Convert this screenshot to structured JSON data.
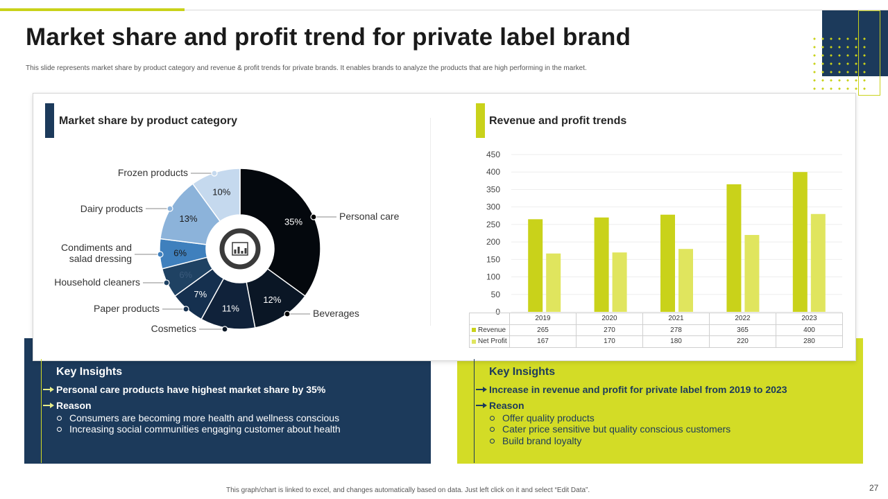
{
  "header": {
    "title": "Market share and profit trend for private label brand",
    "subtitle": "This slide represents market share by product category and revenue & profit trends for private  brands. It enables brands to analyze the products that are high performing in the market."
  },
  "sections": {
    "left_title": "Market share by product category",
    "right_title": "Revenue and profit trends"
  },
  "colors": {
    "navy": "#1c3a5b",
    "lime": "#c9d21a",
    "lime_light": "#e0e55e"
  },
  "chart_data": [
    {
      "type": "pie",
      "variant": "donut",
      "title": "Market share by product category",
      "center_icon": "chart-icon",
      "categories": [
        "Personal care",
        "Beverages",
        "Cosmetics",
        "Paper products",
        "Household cleaners",
        "Condiments and salad dressing",
        "Dairy products",
        "Frozen products"
      ],
      "label_lines": [
        [
          "Personal care"
        ],
        [
          "Beverages"
        ],
        [
          "Cosmetics"
        ],
        [
          "Paper products"
        ],
        [
          "Household cleaners"
        ],
        [
          "Condiments and",
          "salad dressing"
        ],
        [
          "Dairy products"
        ],
        [
          "Frozen products"
        ]
      ],
      "values": [
        35,
        12,
        11,
        7,
        6,
        6,
        13,
        10
      ],
      "value_labels": [
        "35%",
        "12%",
        "11%",
        "7%",
        "6%",
        "6%",
        "13%",
        "10%"
      ],
      "colors": [
        "#04080d",
        "#0a1625",
        "#10223a",
        "#15304f",
        "#1f4263",
        "#3f80bd",
        "#8cb3da",
        "#c5d9ee"
      ]
    },
    {
      "type": "bar",
      "title": "Revenue and profit trends",
      "categories": [
        "2019",
        "2020",
        "2021",
        "2022",
        "2023"
      ],
      "series": [
        {
          "name": "Revenue",
          "values": [
            265,
            270,
            278,
            365,
            400
          ],
          "color": "#c9d21a"
        },
        {
          "name": "Net Profit",
          "values": [
            167,
            170,
            180,
            220,
            280
          ],
          "color": "#e0e55e"
        }
      ],
      "yticks": [
        "0",
        "50",
        "100",
        "150",
        "200",
        "250",
        "300",
        "350",
        "400",
        "450"
      ],
      "ylim": [
        0,
        450
      ],
      "legend": "data-table"
    }
  ],
  "insights_left": {
    "heading": "Key Insights",
    "point": "Personal care products have highest market share by 35%",
    "reason_label": "Reason",
    "bullets": [
      "Consumers are becoming more health and wellness conscious",
      "Increasing social communities engaging customer about health"
    ]
  },
  "insights_right": {
    "heading": "Key Insights",
    "point": "Increase in revenue and profit for private label from 2019 to 2023",
    "reason_label": "Reason",
    "bullets": [
      "Offer quality products",
      "Cater price sensitive but quality conscious customers",
      "Build brand loyalty"
    ]
  },
  "footer": {
    "note": "This graph/chart is linked to excel,  and changes automatically based on data. Just left click on it and select “Edit Data”.",
    "page_number": "27"
  }
}
